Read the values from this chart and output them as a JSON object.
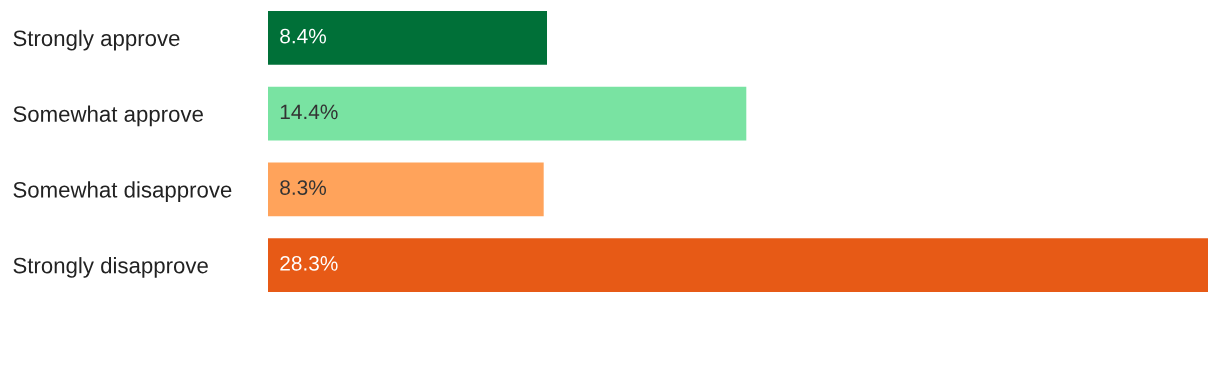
{
  "chart_data": {
    "type": "bar",
    "orientation": "horizontal",
    "categories": [
      "Strongly approve",
      "Somewhat approve",
      "Somewhat disapprove",
      "Strongly disapprove"
    ],
    "values": [
      8.4,
      14.4,
      8.3,
      28.3
    ],
    "colors": [
      "#007038",
      "#79e3a2",
      "#ffa35b",
      "#e75a16"
    ],
    "value_labels": [
      "8.4%",
      "14.4%",
      "8.3%",
      "28.3%"
    ],
    "xlim": [
      0,
      28.3
    ],
    "tick_labels": "y",
    "grid": false,
    "legend": false
  }
}
